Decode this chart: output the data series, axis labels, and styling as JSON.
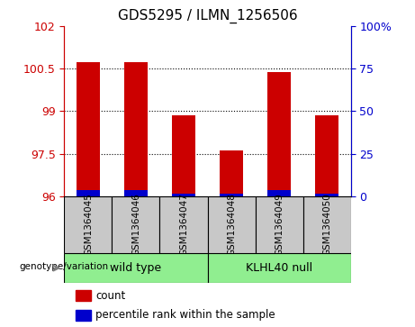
{
  "title": "GDS5295 / ILMN_1256506",
  "samples": [
    "GSM1364045",
    "GSM1364046",
    "GSM1364047",
    "GSM1364048",
    "GSM1364049",
    "GSM1364050"
  ],
  "count_values": [
    100.73,
    100.73,
    98.85,
    97.62,
    100.38,
    98.85
  ],
  "percentile_values": [
    96.22,
    96.22,
    96.1,
    96.1,
    96.22,
    96.1
  ],
  "y_min": 96,
  "y_max": 102,
  "y_ticks_left": [
    96,
    97.5,
    99,
    100.5,
    102
  ],
  "y_tick_labels_left": [
    "96",
    "97.5",
    "99",
    "100.5",
    "102"
  ],
  "y_ticks_right": [
    0,
    25,
    50,
    75,
    100
  ],
  "y_tick_labels_right": [
    "0",
    "25",
    "50",
    "75",
    "100%"
  ],
  "bar_width": 0.5,
  "red_color": "#cc0000",
  "blue_color": "#0000cc",
  "genotype_label": "genotype/variation",
  "group_labels": [
    "wild type",
    "KLHL40 null"
  ],
  "group_colors": [
    "#90ee90",
    "#90ee90"
  ],
  "legend_count": "count",
  "legend_percentile": "percentile rank within the sample",
  "title_fontsize": 11,
  "tick_fontsize": 9,
  "label_box_color": "#c8c8c8",
  "dotted_yticks": [
    97.5,
    99,
    100.5
  ]
}
